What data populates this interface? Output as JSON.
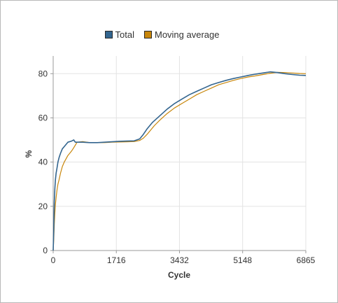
{
  "chart_data": {
    "type": "line",
    "title": "",
    "xlabel": "Cycle",
    "ylabel": "%",
    "xlim": [
      0,
      6865
    ],
    "ylim": [
      0,
      88
    ],
    "xticks": [
      0,
      1716,
      3432,
      5148,
      6865
    ],
    "yticks": [
      0,
      20,
      40,
      60,
      80
    ],
    "grid": true,
    "legend_position": "top-center",
    "series": [
      {
        "name": "Total",
        "color": "#33658f",
        "x": [
          0,
          15,
          30,
          45,
          60,
          80,
          100,
          130,
          160,
          200,
          250,
          300,
          350,
          400,
          500,
          560,
          600,
          800,
          1000,
          1200,
          1400,
          1600,
          1800,
          2000,
          2200,
          2350,
          2450,
          2550,
          2700,
          2900,
          3100,
          3300,
          3500,
          3700,
          3900,
          4100,
          4300,
          4500,
          4700,
          4900,
          5100,
          5300,
          5500,
          5700,
          5900,
          6100,
          6300,
          6500,
          6700,
          6865
        ],
        "y": [
          0,
          9,
          22,
          28,
          32,
          35,
          37,
          40,
          42,
          44,
          46,
          47,
          48,
          49,
          49.5,
          50,
          49,
          49,
          48.8,
          48.8,
          49,
          49.2,
          49.4,
          49.5,
          49.6,
          50.5,
          52.5,
          55,
          58,
          61,
          64,
          66.5,
          68.5,
          70.5,
          72,
          73.5,
          75,
          76,
          77,
          77.8,
          78.5,
          79.2,
          79.8,
          80.3,
          80.8,
          80.5,
          80,
          79.6,
          79.3,
          79.2
        ]
      },
      {
        "name": "Moving average",
        "color": "#c8860a",
        "x": [
          0,
          15,
          30,
          45,
          60,
          80,
          100,
          130,
          160,
          200,
          250,
          300,
          350,
          400,
          450,
          500,
          560,
          650,
          800,
          1000,
          1200,
          1400,
          1600,
          1800,
          2000,
          2200,
          2350,
          2450,
          2550,
          2650,
          2750,
          2900,
          3100,
          3300,
          3500,
          3700,
          3900,
          4100,
          4300,
          4500,
          4700,
          4900,
          5100,
          5300,
          5500,
          5700,
          5900,
          6100,
          6300,
          6500,
          6700,
          6865
        ],
        "y": [
          0,
          5,
          12,
          17,
          21,
          24,
          27,
          30,
          32,
          35,
          38,
          40,
          41.5,
          43,
          44,
          45,
          46.5,
          49,
          49.3,
          48.8,
          48.8,
          48.8,
          49,
          49.1,
          49.2,
          49.3,
          49.8,
          50.8,
          52.5,
          54.5,
          56.5,
          59,
          62,
          64.5,
          66.5,
          68.5,
          70.5,
          72,
          73.5,
          75,
          76,
          77,
          77.8,
          78.5,
          79,
          79.6,
          80.2,
          80.6,
          80.5,
          80.3,
          80.1,
          80
        ]
      }
    ]
  }
}
